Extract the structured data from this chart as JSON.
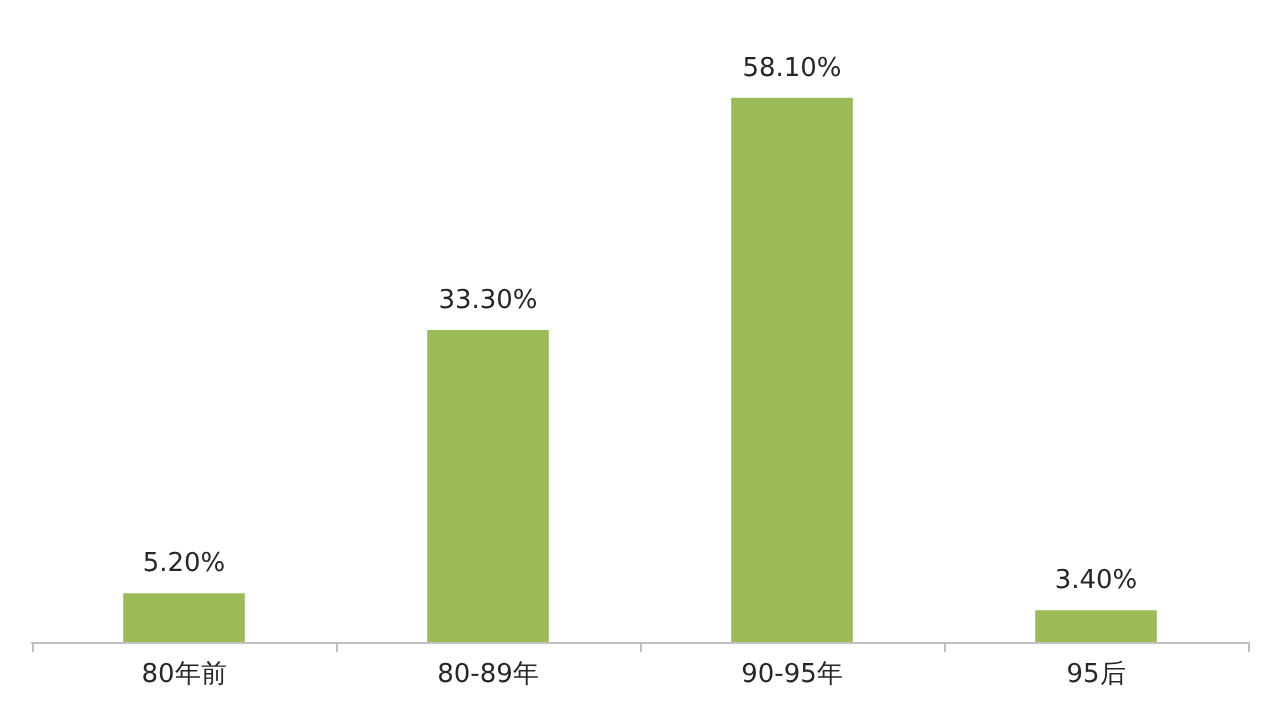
{
  "chart_data": {
    "type": "bar",
    "categories": [
      "80年前",
      "80-89年",
      "90-95年",
      "95后"
    ],
    "values": [
      5.2,
      33.3,
      58.1,
      3.4
    ],
    "value_labels": [
      "5.20%",
      "33.30%",
      "58.10%",
      "3.40%"
    ],
    "color": "#9bbb59"
  }
}
